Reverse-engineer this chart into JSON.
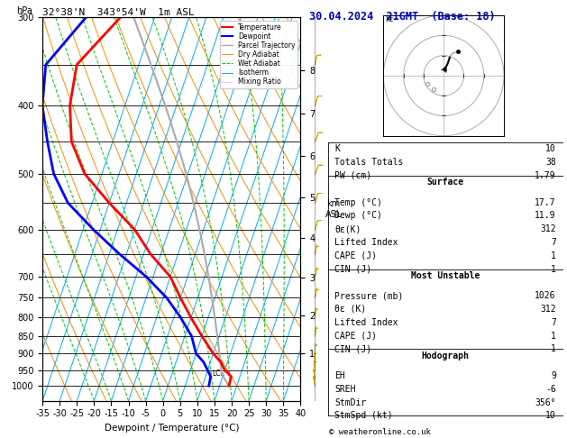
{
  "title_left": "32°38'N  343°54'W  1m ASL",
  "title_right": "30.04.2024  21GMT  (Base: 18)",
  "xlabel": "Dewpoint / Temperature (°C)",
  "legend_entries": [
    {
      "label": "Temperature",
      "color": "#ff0000",
      "lw": 1.5,
      "ls": "-"
    },
    {
      "label": "Dewpoint",
      "color": "#0000ff",
      "lw": 1.5,
      "ls": "-"
    },
    {
      "label": "Parcel Trajectory",
      "color": "#aaaaaa",
      "lw": 1.0,
      "ls": "-"
    },
    {
      "label": "Dry Adiabat",
      "color": "#ff8c00",
      "lw": 0.7,
      "ls": "-"
    },
    {
      "label": "Wet Adiabat",
      "color": "#00cc00",
      "lw": 0.7,
      "ls": "--"
    },
    {
      "label": "Isotherm",
      "color": "#00aaff",
      "lw": 0.7,
      "ls": "-"
    },
    {
      "label": "Mixing Ratio",
      "color": "#ff00ff",
      "lw": 0.5,
      "ls": ":"
    }
  ],
  "isotherm_color": "#00aaff",
  "dry_adiabat_color": "#ff8c00",
  "wet_adiabat_color": "#00cc00",
  "mixing_ratio_color": "#ff00ff",
  "temperature_color": "#ff0000",
  "dewpoint_color": "#0000ff",
  "parcel_color": "#aaaaaa",
  "wind_barb_color": "#ccaa00",
  "stats": {
    "K": 10,
    "Totals_Totals": 38,
    "PW_cm": 1.79,
    "Surface_Temp": 17.7,
    "Surface_Dewp": 11.9,
    "Surface_theta_e": 312,
    "Surface_LI": 7,
    "Surface_CAPE": 1,
    "Surface_CIN": 1,
    "MU_Pressure": 1026,
    "MU_theta_e": 312,
    "MU_LI": 7,
    "MU_CAPE": 1,
    "MU_CIN": 1,
    "Hodo_EH": 9,
    "Hodo_SREH": -6,
    "Hodo_StmDir": 356,
    "Hodo_StmSpd": 10
  },
  "temp_profile_T": [
    17.7,
    17.5,
    15.0,
    13.0,
    10.0,
    5.0,
    0.0,
    -5.0,
    -10.0,
    -18.0,
    -25.0,
    -35.0,
    -45.0,
    -52.0,
    -56.0,
    -58.0,
    -50.0
  ],
  "temp_profile_P": [
    1000,
    970,
    950,
    925,
    900,
    850,
    800,
    750,
    700,
    650,
    600,
    550,
    500,
    450,
    400,
    350,
    300
  ],
  "dewp_profile_T": [
    11.9,
    11.5,
    10.0,
    8.0,
    5.0,
    2.0,
    -3.0,
    -9.0,
    -17.0,
    -27.0,
    -37.0,
    -47.0,
    -54.0,
    -59.0,
    -64.0,
    -67.0,
    -60.0
  ],
  "dewp_profile_P": [
    1000,
    970,
    950,
    925,
    900,
    850,
    800,
    750,
    700,
    650,
    600,
    550,
    500,
    450,
    400,
    350,
    300
  ],
  "skew_factor": 30,
  "p_ref": 1050,
  "pmin": 300,
  "pmax": 1050,
  "temp_min": -35,
  "temp_max": 40,
  "pressure_yticks": [
    300,
    400,
    500,
    600,
    700,
    750,
    800,
    850,
    900,
    950,
    1000
  ],
  "mixing_ratio_vals": [
    1,
    2,
    3,
    4,
    5,
    8,
    10,
    15,
    20,
    25
  ],
  "km_ticks": [
    1,
    2,
    3,
    4,
    5,
    6,
    7,
    8
  ]
}
